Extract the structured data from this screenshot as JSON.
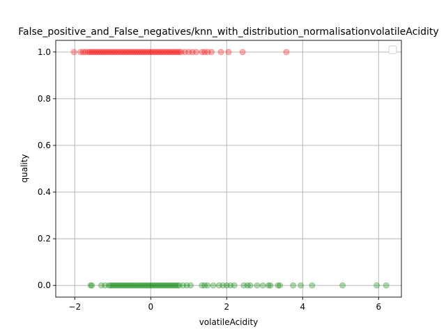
{
  "chart_data": {
    "type": "scatter",
    "title": "False_positive_and_False_negatives/knn_with_distribution_normalisationvolatileAcidity",
    "xlabel": "volatileAcidity",
    "ylabel": "quality",
    "xlim": [
      -2.5,
      6.6
    ],
    "ylim": [
      -0.05,
      1.05
    ],
    "x_ticks": [
      -2,
      0,
      2,
      4,
      6
    ],
    "x_tick_labels": [
      "−2",
      "0",
      "2",
      "4",
      "6"
    ],
    "y_ticks": [
      0.0,
      0.2,
      0.4,
      0.6,
      0.8,
      1.0
    ],
    "y_tick_labels": [
      "0.0",
      "0.2",
      "0.4",
      "0.6",
      "0.8",
      "1.0"
    ],
    "grid": true,
    "legend": {
      "placement": "top-right",
      "entries": []
    },
    "series": [
      {
        "color": "#ff0000",
        "alpha": 0.3,
        "points": [
          [
            -2.02,
            1
          ],
          [
            -1.85,
            1
          ],
          [
            -1.78,
            1
          ],
          [
            -1.72,
            1
          ],
          [
            -1.65,
            1
          ],
          [
            -1.6,
            1
          ],
          [
            -1.55,
            1
          ],
          [
            -1.5,
            1
          ],
          [
            -1.45,
            1
          ],
          [
            -1.4,
            1
          ],
          [
            -1.35,
            1
          ],
          [
            -1.3,
            1
          ],
          [
            -1.25,
            1
          ],
          [
            -1.2,
            1
          ],
          [
            -1.15,
            1
          ],
          [
            -1.1,
            1
          ],
          [
            -1.05,
            1
          ],
          [
            -1.0,
            1
          ],
          [
            -0.95,
            1
          ],
          [
            -0.9,
            1
          ],
          [
            -0.85,
            1
          ],
          [
            -0.8,
            1
          ],
          [
            -0.75,
            1
          ],
          [
            -0.7,
            1
          ],
          [
            -0.65,
            1
          ],
          [
            -0.6,
            1
          ],
          [
            -0.55,
            1
          ],
          [
            -0.5,
            1
          ],
          [
            -0.45,
            1
          ],
          [
            -0.4,
            1
          ],
          [
            -0.35,
            1
          ],
          [
            -0.3,
            1
          ],
          [
            -0.25,
            1
          ],
          [
            -0.2,
            1
          ],
          [
            -0.15,
            1
          ],
          [
            -0.1,
            1
          ],
          [
            -0.05,
            1
          ],
          [
            0.0,
            1
          ],
          [
            0.05,
            1
          ],
          [
            0.1,
            1
          ],
          [
            0.15,
            1
          ],
          [
            0.2,
            1
          ],
          [
            0.25,
            1
          ],
          [
            0.3,
            1
          ],
          [
            0.35,
            1
          ],
          [
            0.4,
            1
          ],
          [
            0.45,
            1
          ],
          [
            0.5,
            1
          ],
          [
            0.55,
            1
          ],
          [
            0.6,
            1
          ],
          [
            0.65,
            1
          ],
          [
            0.7,
            1
          ],
          [
            0.75,
            1
          ],
          [
            0.8,
            1
          ],
          [
            0.9,
            1
          ],
          [
            1.0,
            1
          ],
          [
            1.1,
            1
          ],
          [
            1.2,
            1
          ],
          [
            1.35,
            1
          ],
          [
            1.42,
            1
          ],
          [
            1.5,
            1
          ],
          [
            1.6,
            1
          ],
          [
            1.85,
            1
          ],
          [
            2.05,
            1
          ],
          [
            2.42,
            1
          ],
          [
            3.57,
            1
          ]
        ]
      },
      {
        "color": "#008000",
        "alpha": 0.3,
        "points": [
          [
            -1.58,
            0
          ],
          [
            -1.55,
            0
          ],
          [
            -1.3,
            0
          ],
          [
            -1.2,
            0
          ],
          [
            -1.1,
            0
          ],
          [
            -1.05,
            0
          ],
          [
            -1.0,
            0
          ],
          [
            -0.95,
            0
          ],
          [
            -0.9,
            0
          ],
          [
            -0.85,
            0
          ],
          [
            -0.8,
            0
          ],
          [
            -0.75,
            0
          ],
          [
            -0.7,
            0
          ],
          [
            -0.65,
            0
          ],
          [
            -0.6,
            0
          ],
          [
            -0.55,
            0
          ],
          [
            -0.5,
            0
          ],
          [
            -0.45,
            0
          ],
          [
            -0.4,
            0
          ],
          [
            -0.35,
            0
          ],
          [
            -0.3,
            0
          ],
          [
            -0.25,
            0
          ],
          [
            -0.2,
            0
          ],
          [
            -0.15,
            0
          ],
          [
            -0.1,
            0
          ],
          [
            -0.05,
            0
          ],
          [
            0.0,
            0
          ],
          [
            0.05,
            0
          ],
          [
            0.1,
            0
          ],
          [
            0.15,
            0
          ],
          [
            0.2,
            0
          ],
          [
            0.25,
            0
          ],
          [
            0.3,
            0
          ],
          [
            0.35,
            0
          ],
          [
            0.4,
            0
          ],
          [
            0.45,
            0
          ],
          [
            0.5,
            0
          ],
          [
            0.55,
            0
          ],
          [
            0.6,
            0
          ],
          [
            0.65,
            0
          ],
          [
            0.7,
            0
          ],
          [
            0.75,
            0
          ],
          [
            0.85,
            0
          ],
          [
            0.95,
            0
          ],
          [
            1.05,
            0
          ],
          [
            1.35,
            0
          ],
          [
            1.42,
            0
          ],
          [
            1.5,
            0
          ],
          [
            1.65,
            0
          ],
          [
            1.8,
            0
          ],
          [
            1.9,
            0
          ],
          [
            2.0,
            0
          ],
          [
            2.1,
            0
          ],
          [
            2.2,
            0
          ],
          [
            2.45,
            0
          ],
          [
            2.55,
            0
          ],
          [
            2.62,
            0
          ],
          [
            2.8,
            0
          ],
          [
            2.95,
            0
          ],
          [
            3.1,
            0
          ],
          [
            3.15,
            0
          ],
          [
            3.35,
            0
          ],
          [
            3.4,
            0
          ],
          [
            3.75,
            0
          ],
          [
            3.95,
            0
          ],
          [
            4.25,
            0
          ],
          [
            5.05,
            0
          ],
          [
            5.95,
            0
          ],
          [
            6.2,
            0
          ]
        ]
      }
    ]
  }
}
